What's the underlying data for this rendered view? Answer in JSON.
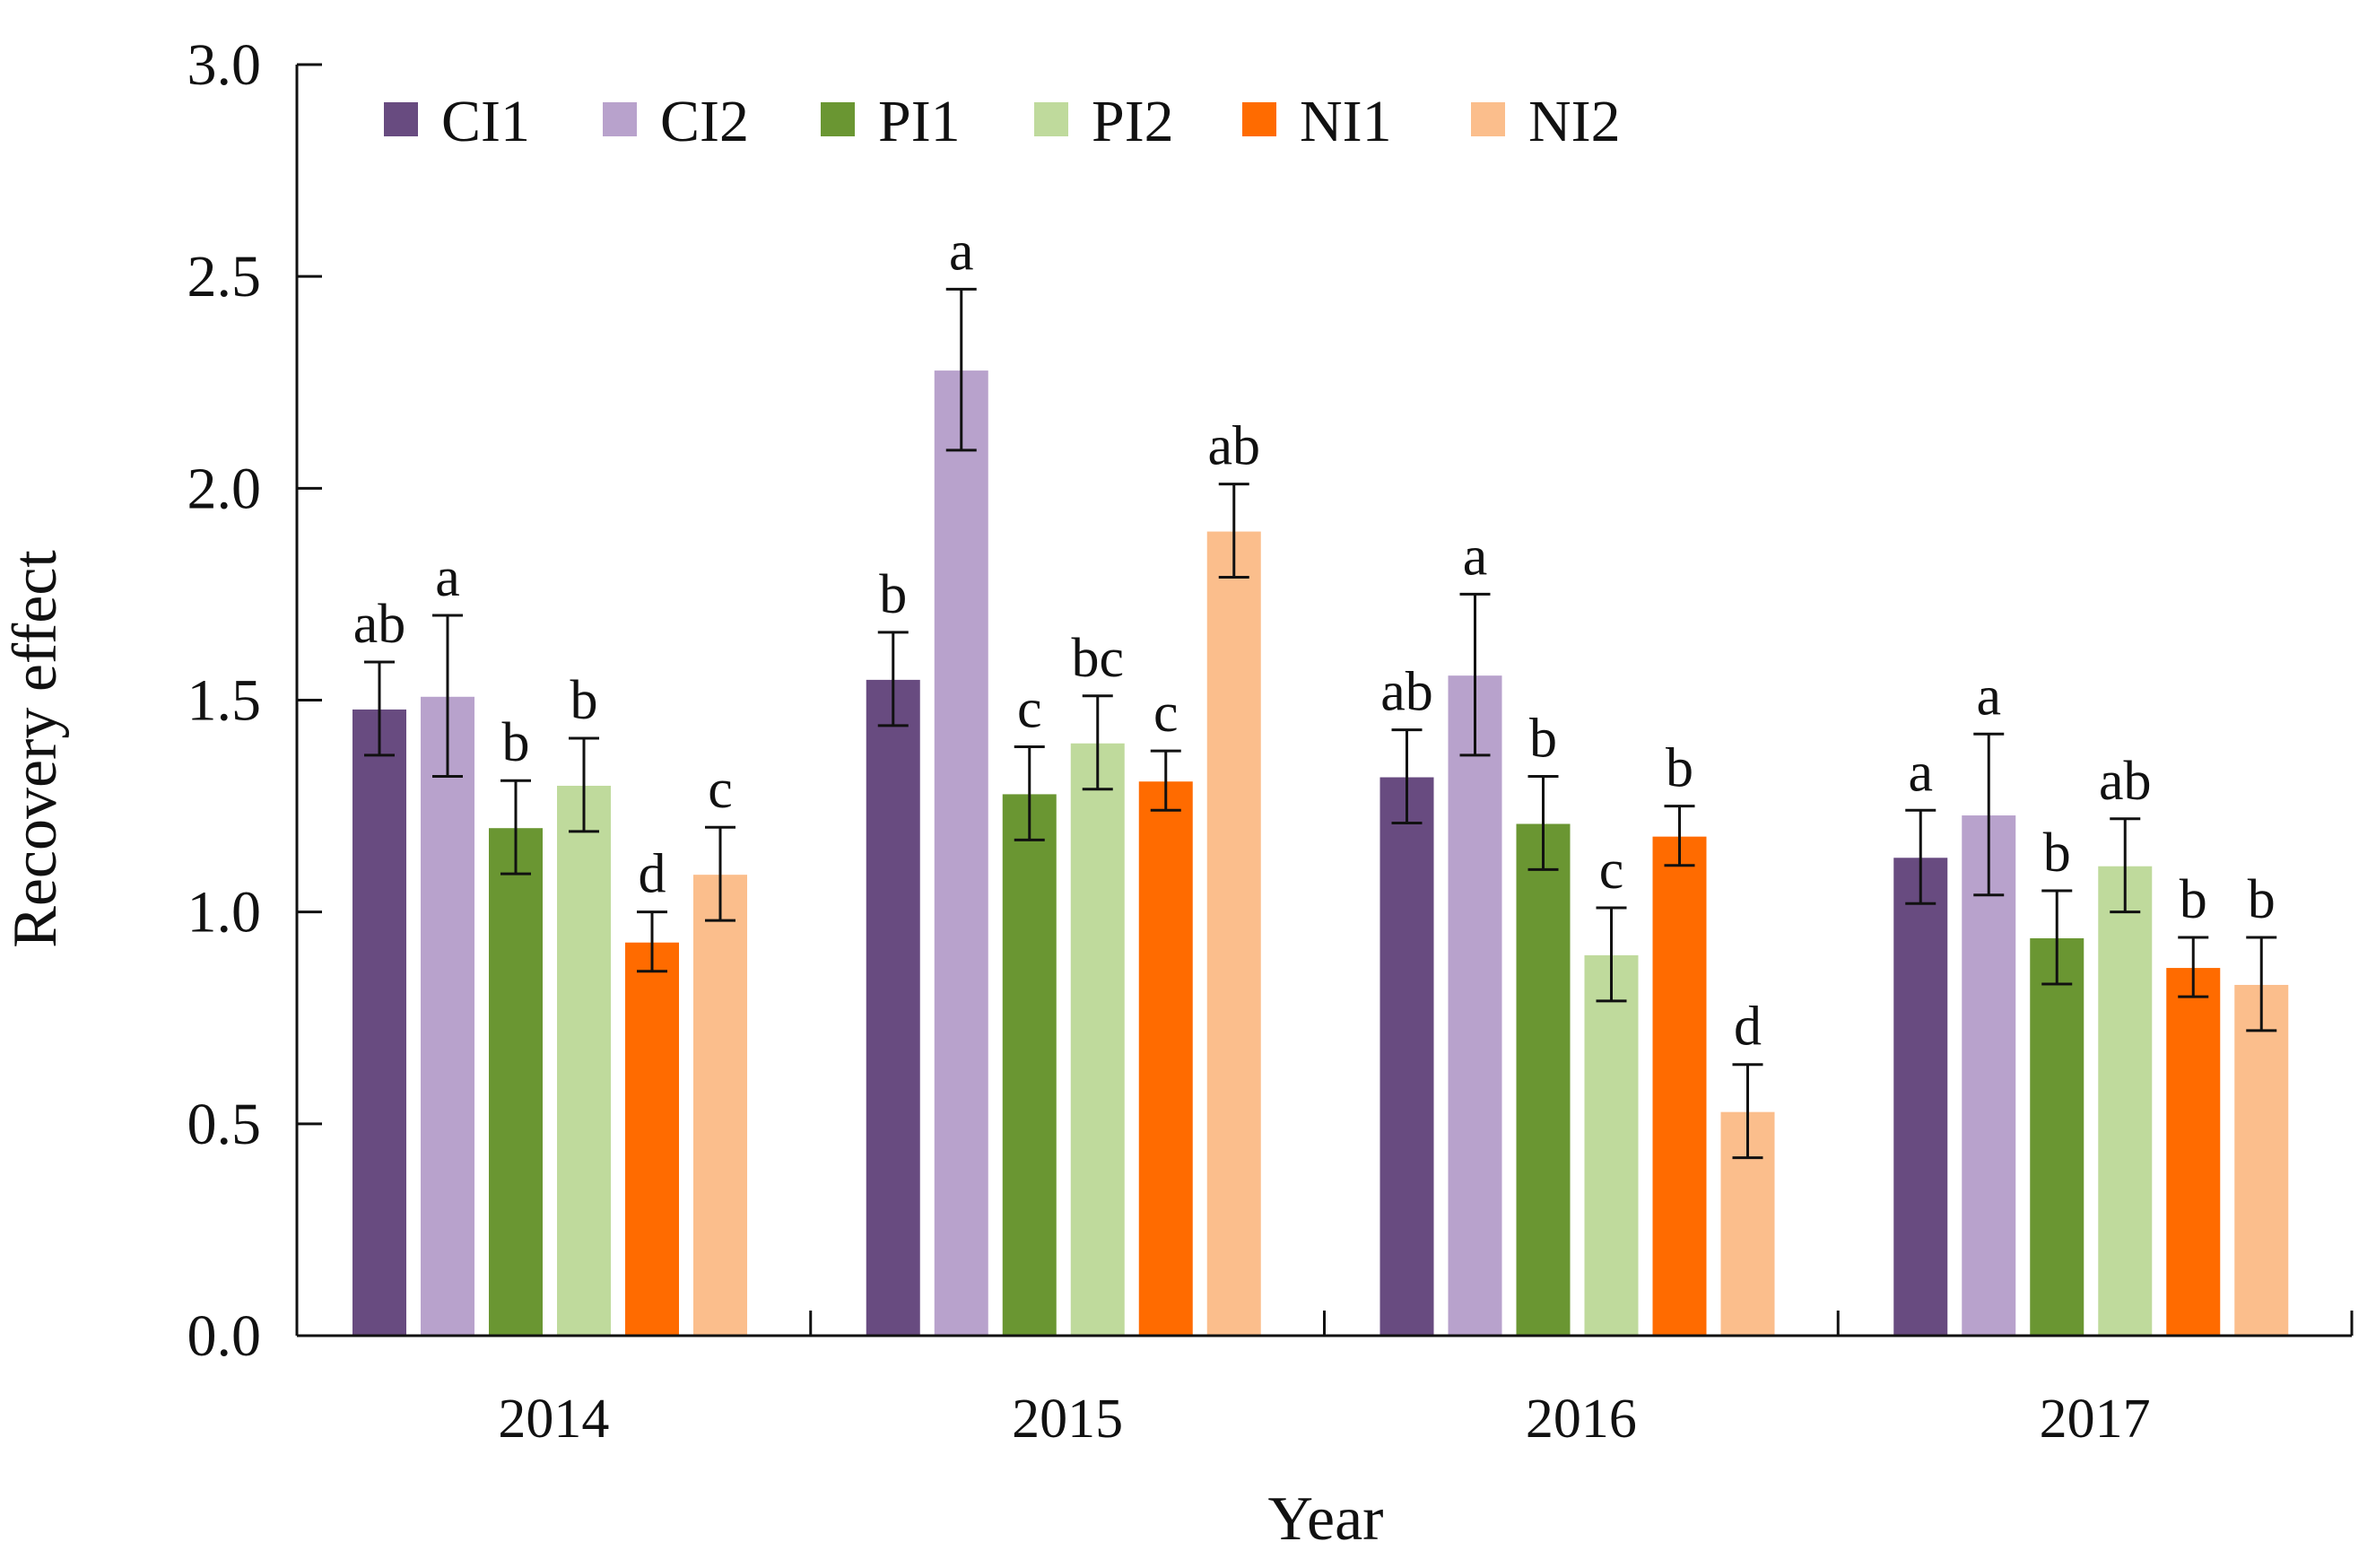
{
  "chart_data": {
    "type": "bar",
    "title": "",
    "xlabel": "Year",
    "ylabel": "Recovery effect",
    "ylim": [
      0,
      3.0
    ],
    "yticks": [
      "0.0",
      "0.5",
      "1.0",
      "1.5",
      "2.0",
      "2.5",
      "3.0"
    ],
    "grid": false,
    "legend_position": "top-left",
    "categories": [
      "2014",
      "2015",
      "2016",
      "2017"
    ],
    "series": [
      {
        "name": "CI1",
        "color": "#684B80",
        "values": [
          1.48,
          1.55,
          1.32,
          1.13
        ],
        "errors": [
          0.11,
          0.11,
          0.11,
          0.11
        ],
        "letters": [
          "ab",
          "b",
          "ab",
          "a"
        ]
      },
      {
        "name": "CI2",
        "color": "#B8A2CC",
        "values": [
          1.51,
          2.28,
          1.56,
          1.23
        ],
        "errors": [
          0.19,
          0.19,
          0.19,
          0.19
        ],
        "letters": [
          "a",
          "a",
          "a",
          "a"
        ]
      },
      {
        "name": "PI1",
        "color": "#6A9632",
        "values": [
          1.2,
          1.28,
          1.21,
          0.94
        ],
        "errors": [
          0.11,
          0.11,
          0.11,
          0.11
        ],
        "letters": [
          "b",
          "c",
          "b",
          "b"
        ]
      },
      {
        "name": "PI2",
        "color": "#BFDA9C",
        "values": [
          1.3,
          1.4,
          0.9,
          1.11
        ],
        "errors": [
          0.11,
          0.11,
          0.11,
          0.11
        ],
        "letters": [
          "b",
          "bc",
          "c",
          "ab"
        ]
      },
      {
        "name": "NI1",
        "color": "#FF6B00",
        "values": [
          0.93,
          1.31,
          1.18,
          0.87
        ],
        "errors": [
          0.07,
          0.07,
          0.07,
          0.07
        ],
        "letters": [
          "d",
          "c",
          "b",
          "b"
        ]
      },
      {
        "name": "NI2",
        "color": "#FBBE8C",
        "values": [
          1.09,
          1.9,
          0.53,
          0.83
        ],
        "errors": [
          0.11,
          0.11,
          0.11,
          0.11
        ],
        "letters": [
          "c",
          "ab",
          "d",
          "b"
        ]
      }
    ]
  }
}
